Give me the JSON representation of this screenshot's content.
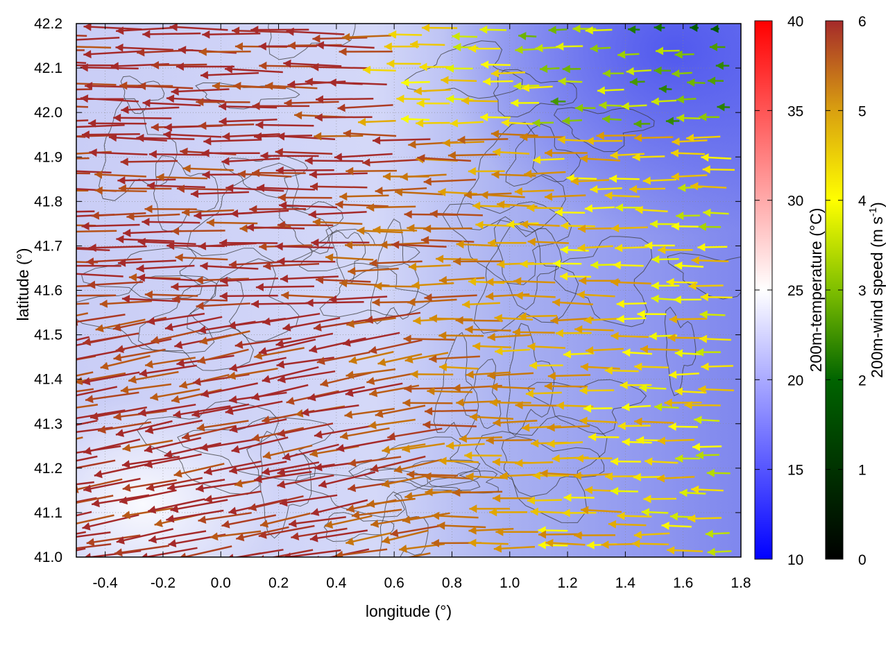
{
  "chart_data": {
    "type": "vector-field",
    "xlabel": "longitude (°)",
    "ylabel": "latitude (°)",
    "xlim": [
      -0.5,
      1.8
    ],
    "ylim": [
      41.0,
      42.2
    ],
    "x_ticks": [
      "-0.4",
      "-0.2",
      "0.0",
      "0.2",
      "0.4",
      "0.6",
      "0.8",
      "1.0",
      "1.2",
      "1.4",
      "1.6",
      "1.8"
    ],
    "y_ticks": [
      "41.0",
      "41.1",
      "41.2",
      "41.3",
      "41.4",
      "41.5",
      "41.6",
      "41.7",
      "41.8",
      "41.9",
      "42.0",
      "42.1",
      "42.2"
    ],
    "grid": true,
    "background_field": {
      "label": "200m-temperature (°C)",
      "range": [
        10,
        40
      ],
      "ticks": [
        "10",
        "15",
        "20",
        "25",
        "30",
        "35",
        "40"
      ],
      "colors": [
        "#0000ff",
        "#ffffff",
        "#ff0000"
      ],
      "typical_values": {
        "west": 24,
        "center": 22,
        "east": 17,
        "northeast": 14
      }
    },
    "vector_field": {
      "label_main": "200m-wind speed (m s",
      "label_sup": "-1",
      "label_end": ")",
      "range": [
        0,
        6
      ],
      "ticks": [
        "0",
        "1",
        "2",
        "3",
        "4",
        "5",
        "6"
      ],
      "colors": [
        "#000000",
        "#006400",
        "#7fbf00",
        "#ffff00",
        "#e0a000",
        "#c06a10",
        "#a52a2a"
      ],
      "direction": "westward (arrows pointing left)",
      "speed_profile": [
        {
          "lon": -0.5,
          "speed": 6.0
        },
        {
          "lon": 0.4,
          "speed": 6.0
        },
        {
          "lon": 0.8,
          "speed": 5.0
        },
        {
          "lon": 1.2,
          "speed": 3.8
        },
        {
          "lon": 1.8,
          "speed": 3.0
        }
      ]
    },
    "overlay": "terrain contour lines (dark gray)"
  }
}
